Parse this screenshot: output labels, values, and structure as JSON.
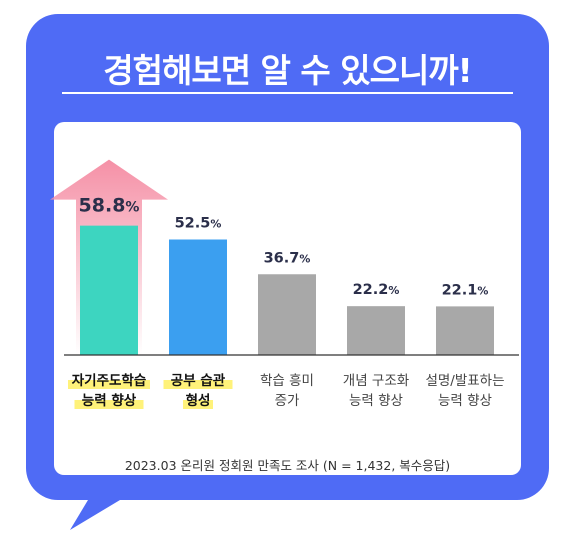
{
  "title": "경험해보면 알 수 있으니까!",
  "footnote": "2023.03 온리원 정회원 만족도 조사 (N = 1,432, 복수응답)",
  "colors": {
    "frame": "#4f6bf5",
    "highlight_bar": "#3dd5c0",
    "second_bar": "#3b9ff0",
    "other_bar": "#a8a8a8",
    "arrow": "#f590a6",
    "label_highlight": "#fff27a"
  },
  "chart_data": {
    "type": "bar",
    "title": "",
    "xlabel": "",
    "ylabel": "",
    "ylim": [
      0,
      100
    ],
    "categories": [
      [
        "자기주도학습",
        "능력 향상"
      ],
      [
        "공부 습관",
        "형성"
      ],
      [
        "학습 흥미",
        "증가"
      ],
      [
        "개념 구조화",
        "능력 향상"
      ],
      [
        "설명/발표하는",
        "능력 향상"
      ]
    ],
    "values": [
      58.8,
      52.5,
      36.7,
      22.2,
      22.1
    ],
    "unit": "%",
    "highlighted_labels": [
      0,
      1
    ]
  }
}
